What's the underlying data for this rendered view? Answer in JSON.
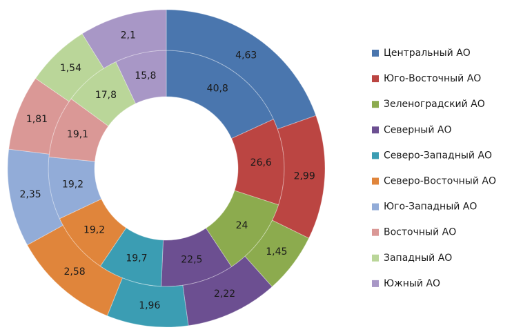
{
  "chart_data": {
    "type": "donut",
    "categories": [
      "Центральный АО",
      "Юго-Восточный АО",
      "Зеленоградский АО",
      "Северный АО",
      "Северо-Западный АО",
      "Северо-Восточный АО",
      "Юго-Западный АО",
      "Восточный АО",
      "Западный АО",
      "Южный АО"
    ],
    "colors": [
      "#4a76ae",
      "#bb4542",
      "#8cab4e",
      "#6c4f91",
      "#3b9db3",
      "#e0853b",
      "#92acd8",
      "#da9896",
      "#bad699",
      "#a897c6"
    ],
    "series": [
      {
        "values": [
          40.8,
          26.6,
          24,
          22.5,
          19.7,
          19.2,
          19.2,
          19.1,
          17.8,
          15.8
        ],
        "value_labels": [
          "40,8",
          "26,6",
          "24",
          "22,5",
          "19,7",
          "19,2",
          "19,2",
          "19,1",
          "17,8",
          "15,8"
        ]
      },
      {
        "values": [
          4.63,
          2.99,
          1.45,
          2.22,
          1.96,
          2.58,
          2.35,
          1.81,
          1.54,
          2.1
        ],
        "value_labels": [
          "4,63",
          "2,99",
          "1,45",
          "2,22",
          "1,96",
          "2,58",
          "2,35",
          "1,81",
          "1,54",
          "2,1"
        ]
      }
    ],
    "legend": "right"
  }
}
